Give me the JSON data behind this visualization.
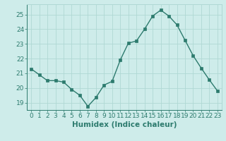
{
  "x": [
    0,
    1,
    2,
    3,
    4,
    5,
    6,
    7,
    8,
    9,
    10,
    11,
    12,
    13,
    14,
    15,
    16,
    17,
    18,
    19,
    20,
    21,
    22,
    23
  ],
  "y": [
    21.3,
    20.9,
    20.5,
    20.5,
    20.4,
    19.9,
    19.5,
    18.75,
    19.35,
    20.2,
    20.45,
    21.9,
    23.05,
    23.2,
    24.0,
    24.9,
    25.3,
    24.9,
    24.3,
    23.25,
    22.2,
    21.35,
    20.55,
    19.8
  ],
  "line_color": "#2d7b6e",
  "marker": "s",
  "markersize": 2.5,
  "linewidth": 1.0,
  "bg_color": "#ceecea",
  "grid_color": "#b0d8d4",
  "tick_color": "#2d7b6e",
  "xlabel": "Humidex (Indice chaleur)",
  "xlim": [
    -0.5,
    23.5
  ],
  "ylim": [
    18.5,
    25.7
  ],
  "yticks": [
    19,
    20,
    21,
    22,
    23,
    24,
    25
  ],
  "xticks": [
    0,
    1,
    2,
    3,
    4,
    5,
    6,
    7,
    8,
    9,
    10,
    11,
    12,
    13,
    14,
    15,
    16,
    17,
    18,
    19,
    20,
    21,
    22,
    23
  ],
  "xlabel_fontsize": 7.5,
  "tick_fontsize": 6.5
}
